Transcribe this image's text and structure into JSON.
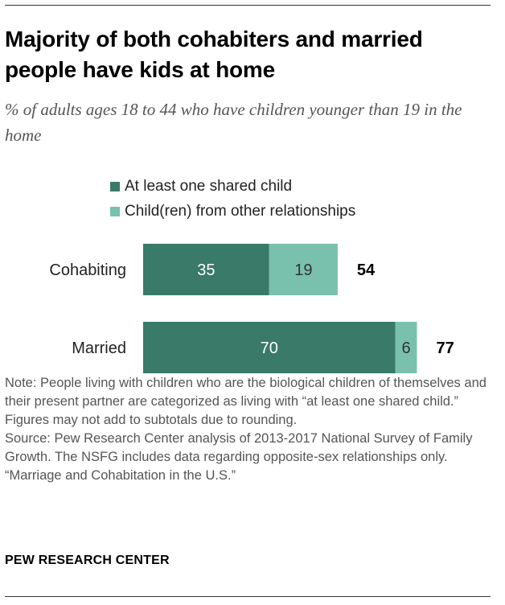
{
  "title": "Majority of both cohabiters and married people have kids at home",
  "subtitle": "% of adults ages 18 to 44 who have children younger than 19 in the home",
  "colors": {
    "shared": "#3a7a68",
    "other": "#79c1ad",
    "label_dark": "#ffffff",
    "label_light": "#333333"
  },
  "chart_data": {
    "type": "bar",
    "orientation": "horizontal",
    "stacked": true,
    "categories": [
      "Cohabiting",
      "Married"
    ],
    "series": [
      {
        "name": "At least one shared child",
        "values": [
          35,
          70
        ]
      },
      {
        "name": "Child(ren) from other relationships",
        "values": [
          19,
          6
        ]
      }
    ],
    "totals": [
      54,
      77
    ],
    "legend_position": "top",
    "grid": false
  },
  "notes": [
    "Note: People living with children who are the biological children of themselves and their present partner are categorized as living with “at least one shared child.” Figures may not add to subtotals due to rounding.",
    "Source: Pew Research Center analysis of 2013-2017 National Survey of Family Growth. The NSFG includes data regarding opposite-sex relationships only.",
    "“Marriage and Cohabitation in the U.S.”"
  ],
  "brand": "PEW RESEARCH CENTER"
}
